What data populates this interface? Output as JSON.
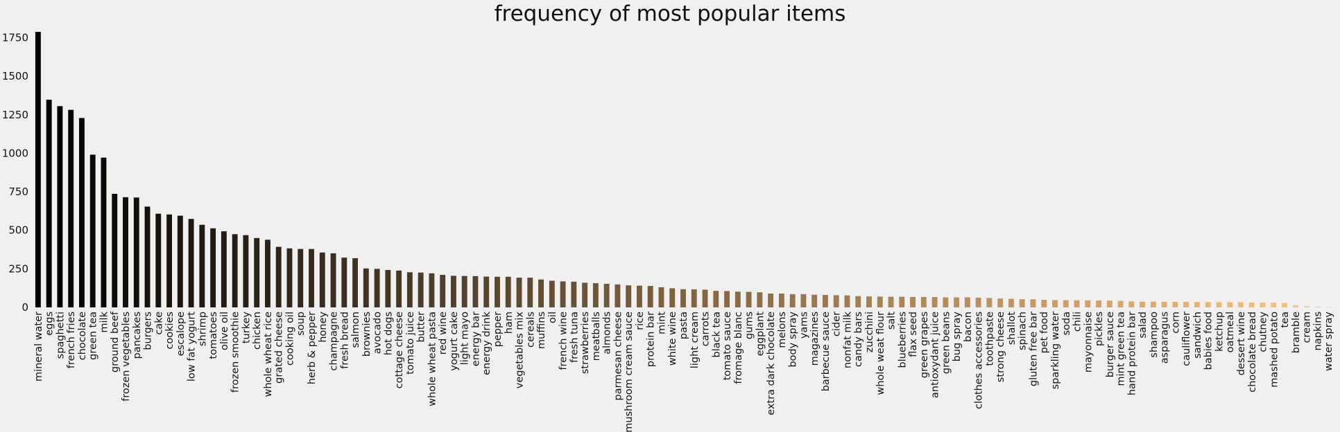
{
  "chart_data": {
    "type": "bar",
    "title": "frequency of most popular items",
    "xlabel": "",
    "ylabel": "",
    "ylim": [
      0,
      1800
    ],
    "yticks": [
      0,
      250,
      500,
      750,
      1000,
      1250,
      1500,
      1750
    ],
    "grid": false,
    "legend": "none",
    "colormap": "copper",
    "colors": {
      "start": "#000000",
      "end": "#ffc77f"
    },
    "categories": [
      "mineral water",
      "eggs",
      "spaghetti",
      "french fries",
      "chocolate",
      "green tea",
      "milk",
      "ground beef",
      "frozen vegetables",
      "pancakes",
      "burgers",
      "cake",
      "cookies",
      "escalope",
      "low fat yogurt",
      "shrimp",
      "tomatoes",
      "olive oil",
      "frozen smoothie",
      "turkey",
      "chicken",
      "whole wheat rice",
      "grated cheese",
      "cooking oil",
      "soup",
      "herb & pepper",
      "honey",
      "champagne",
      "fresh bread",
      "salmon",
      "brownies",
      "avocado",
      "hot dogs",
      "cottage cheese",
      "tomato juice",
      "butter",
      "whole wheat pasta",
      "red wine",
      "yogurt cake",
      "light mayo",
      "energy bar",
      "energy drink",
      "pepper",
      "ham",
      "vegetables mix",
      "cereals",
      "muffins",
      "oil",
      "french wine",
      "fresh tuna",
      "strawberries",
      "meatballs",
      "almonds",
      "parmesan cheese",
      "mushroom cream sauce",
      "rice",
      "protein bar",
      "mint",
      "white wine",
      "pasta",
      "light cream",
      "carrots",
      "black tea",
      "tomato sauce",
      "fromage blanc",
      "gums",
      "eggplant",
      "extra dark chocolate",
      "melons",
      "body spray",
      "yams",
      "magazines",
      "barbecue sauce",
      "cider",
      "nonfat milk",
      "candy bars",
      "zucchini",
      "whole weat flour",
      "salt",
      "blueberries",
      "flax seed",
      "green grapes",
      "antioxydant juice",
      "green beans",
      "bug spray",
      "bacon",
      "clothes accessories",
      "toothpaste",
      "strong cheese",
      "shallot",
      "spinach",
      "gluten free bar",
      "pet food",
      "sparkling water",
      "soda",
      "chili",
      "mayonnaise",
      "pickles",
      "burger sauce",
      "mint green tea",
      "hand protein bar",
      "salad",
      "shampoo",
      "asparagus",
      "corn",
      "cauliflower",
      "sandwich",
      "babies food",
      "ketchup",
      "oatmeal",
      "dessert wine",
      "chocolate bread",
      "chutney",
      "mashed potato",
      "tea",
      "bramble",
      "cream",
      "napkins",
      "water spray"
    ],
    "values": [
      1788,
      1348,
      1306,
      1282,
      1229,
      991,
      972,
      737,
      715,
      713,
      654,
      608,
      603,
      595,
      574,
      536,
      513,
      494,
      475,
      469,
      450,
      439,
      393,
      383,
      379,
      379,
      356,
      351,
      323,
      319,
      253,
      250,
      243,
      239,
      228,
      226,
      221,
      211,
      205,
      204,
      203,
      200,
      199,
      199,
      193,
      193,
      181,
      173,
      169,
      167,
      160,
      157,
      153,
      149,
      143,
      141,
      139,
      131,
      124,
      118,
      117,
      115,
      107,
      106,
      102,
      101,
      98,
      90,
      90,
      86,
      86,
      82,
      81,
      79,
      78,
      73,
      71,
      70,
      69,
      69,
      68,
      68,
      67,
      65,
      65,
      65,
      63,
      61,
      58,
      56,
      53,
      52,
      49,
      47,
      47,
      46,
      46,
      45,
      44,
      42,
      39,
      37,
      37,
      36,
      36,
      36,
      34,
      34,
      33,
      33,
      33,
      32,
      31,
      31,
      29,
      14,
      7,
      5,
      3
    ]
  }
}
